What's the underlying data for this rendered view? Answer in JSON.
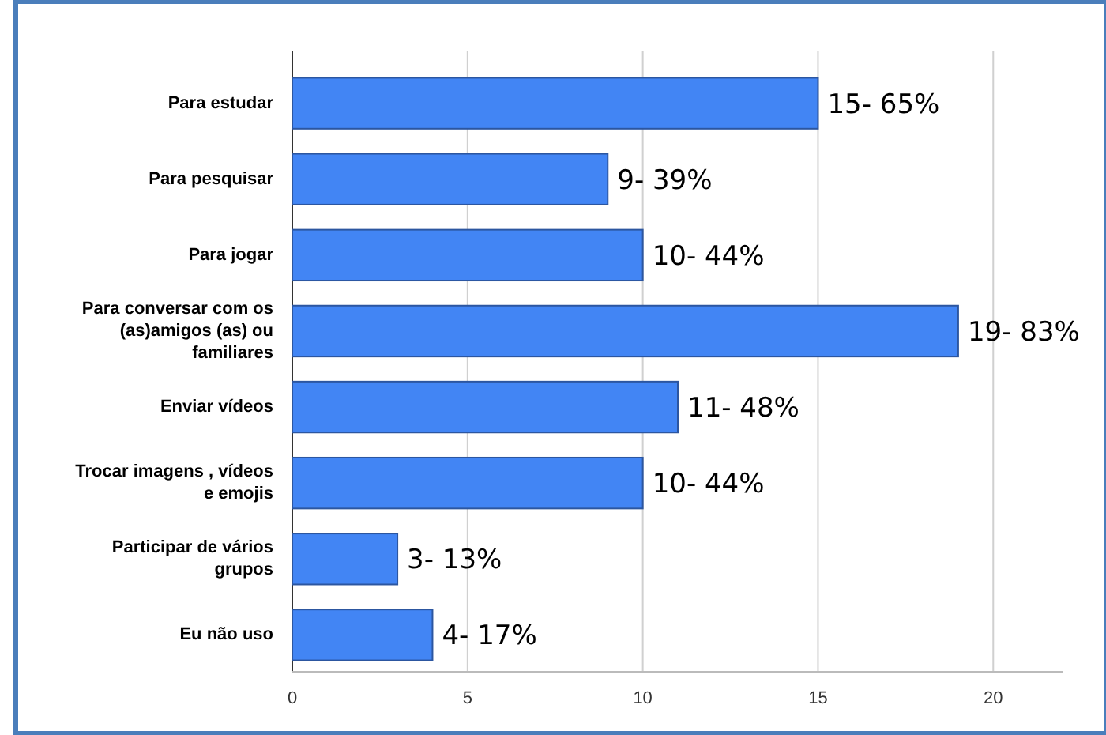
{
  "chart_data": {
    "type": "bar",
    "orientation": "horizontal",
    "categories": [
      "Para estudar",
      "Para pesquisar",
      "Para jogar",
      "Para conversar com os (as)amigos (as) ou familiares",
      "Enviar vídeos",
      "Trocar imagens , vídeos e emojis",
      "Participar de vários grupos",
      "Eu não uso"
    ],
    "values": [
      15,
      9,
      10,
      19,
      11,
      10,
      3,
      4
    ],
    "value_labels": [
      "15- 65%",
      "9- 39%",
      "10- 44%",
      "19- 83%",
      "11- 48%",
      "10- 44%",
      "3- 13%",
      "4- 17%"
    ],
    "color": "#4285f4",
    "xlim": [
      0,
      22
    ],
    "xticks": [
      0,
      5,
      10,
      15,
      20
    ],
    "grid": "x"
  }
}
